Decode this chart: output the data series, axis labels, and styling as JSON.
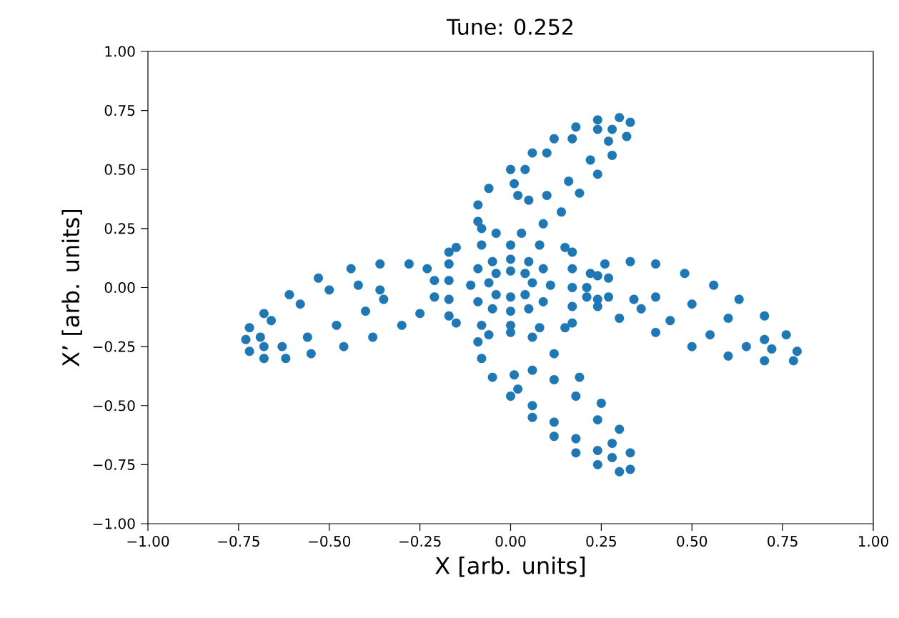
{
  "chart_data": {
    "type": "scatter",
    "title": "Tune: 0.252",
    "xlabel": "X [arb. units]",
    "ylabel": "X’ [arb. units]",
    "xlim": [
      -1,
      1
    ],
    "ylim": [
      -1,
      1
    ],
    "xticks": [
      {
        "value": -1,
        "label": "−1.00"
      },
      {
        "value": -0.75,
        "label": "−0.75"
      },
      {
        "value": -0.5,
        "label": "−0.50"
      },
      {
        "value": -0.25,
        "label": "−0.25"
      },
      {
        "value": 0,
        "label": "0.00"
      },
      {
        "value": 0.25,
        "label": "0.25"
      },
      {
        "value": 0.5,
        "label": "0.50"
      },
      {
        "value": 0.75,
        "label": "0.75"
      },
      {
        "value": 1,
        "label": "1.00"
      }
    ],
    "yticks": [
      {
        "value": -1,
        "label": "−1.00"
      },
      {
        "value": -0.75,
        "label": "−0.75"
      },
      {
        "value": -0.5,
        "label": "−0.50"
      },
      {
        "value": -0.25,
        "label": "−0.25"
      },
      {
        "value": 0,
        "label": "0.00"
      },
      {
        "value": 0.25,
        "label": "0.25"
      },
      {
        "value": 0.5,
        "label": "0.50"
      },
      {
        "value": 0.75,
        "label": "0.75"
      },
      {
        "value": 1,
        "label": "1.00"
      }
    ],
    "grid": false,
    "series": [
      {
        "color": "#1f77b4",
        "x": [
          0.21,
          0.22,
          0.26,
          0.33,
          0.4,
          0.48,
          0.56,
          0.63,
          0.7,
          0.76,
          0.79,
          0.78,
          0.7,
          0.6,
          0.5,
          0.4,
          0.3,
          0.24,
          0.21,
          0.34,
          0.4,
          0.5,
          0.6,
          0.7,
          0.72,
          0.65,
          0.55,
          0.44,
          0.36,
          0.24,
          0.24,
          0.27,
          0.27
        ],
        "values": [
          0.0,
          0.06,
          0.1,
          0.11,
          0.1,
          0.06,
          0.01,
          -0.05,
          -0.12,
          -0.2,
          -0.27,
          -0.31,
          -0.31,
          -0.29,
          -0.25,
          -0.19,
          -0.13,
          -0.08,
          -0.04,
          -0.05,
          -0.04,
          -0.07,
          -0.13,
          -0.22,
          -0.26,
          -0.25,
          -0.2,
          -0.14,
          -0.09,
          0.05,
          -0.05,
          0.04,
          -0.04
        ]
      },
      {
        "color": "#1f77b4",
        "x": [
          -0.09,
          -0.09,
          -0.06,
          0.0,
          0.06,
          0.12,
          0.18,
          0.24,
          0.3,
          0.33,
          0.32,
          0.28,
          0.24,
          0.19,
          0.14,
          0.09,
          0.03,
          -0.04,
          -0.08,
          0.01,
          0.04,
          0.1,
          0.17,
          0.24,
          0.28,
          0.27,
          0.22,
          0.16,
          0.1,
          0.05,
          0.02
        ],
        "values": [
          0.28,
          0.35,
          0.42,
          0.5,
          0.57,
          0.63,
          0.68,
          0.71,
          0.72,
          0.7,
          0.64,
          0.56,
          0.48,
          0.4,
          0.32,
          0.27,
          0.23,
          0.23,
          0.25,
          0.44,
          0.5,
          0.57,
          0.63,
          0.67,
          0.67,
          0.62,
          0.54,
          0.45,
          0.39,
          0.37,
          0.39
        ]
      },
      {
        "color": "#1f77b4",
        "x": [
          -0.73,
          -0.72,
          -0.68,
          -0.62,
          -0.55,
          -0.46,
          -0.38,
          -0.3,
          -0.25,
          -0.21,
          -0.21,
          -0.23,
          -0.28,
          -0.36,
          -0.44,
          -0.53,
          -0.61,
          -0.68,
          -0.72,
          -0.69,
          -0.66,
          -0.58,
          -0.5,
          -0.42,
          -0.36,
          -0.35,
          -0.4,
          -0.48,
          -0.56,
          -0.63,
          -0.68
        ],
        "values": [
          -0.22,
          -0.27,
          -0.3,
          -0.3,
          -0.28,
          -0.25,
          -0.21,
          -0.16,
          -0.11,
          -0.04,
          0.03,
          0.08,
          0.1,
          0.1,
          0.08,
          0.04,
          -0.03,
          -0.11,
          -0.17,
          -0.21,
          -0.14,
          -0.07,
          -0.01,
          0.01,
          -0.01,
          -0.05,
          -0.1,
          -0.16,
          -0.21,
          -0.25,
          -0.25
        ]
      },
      {
        "color": "#1f77b4",
        "x": [
          -0.09,
          -0.08,
          -0.05,
          0.0,
          0.06,
          0.12,
          0.18,
          0.24,
          0.3,
          0.33,
          0.33,
          0.3,
          0.25,
          0.19,
          0.12,
          0.06,
          0.0,
          -0.06,
          0.01,
          0.02,
          0.06,
          0.12,
          0.18,
          0.24,
          0.28,
          0.28,
          0.24,
          0.18,
          0.12,
          0.06
        ],
        "values": [
          -0.23,
          -0.3,
          -0.38,
          -0.46,
          -0.55,
          -0.63,
          -0.7,
          -0.75,
          -0.78,
          -0.77,
          -0.7,
          -0.6,
          -0.49,
          -0.38,
          -0.28,
          -0.21,
          -0.19,
          -0.2,
          -0.37,
          -0.43,
          -0.5,
          -0.57,
          -0.64,
          -0.69,
          -0.72,
          -0.66,
          -0.56,
          -0.46,
          -0.39,
          -0.35
        ]
      },
      {
        "color": "#1f77b4",
        "x": [
          -0.17,
          -0.15,
          -0.08,
          0.0,
          0.08,
          0.15,
          0.17,
          0.17,
          0.17,
          0.17,
          0.17,
          0.15,
          0.08,
          0.0,
          -0.08,
          -0.15,
          -0.17,
          -0.17,
          -0.17,
          -0.17,
          -0.11,
          -0.09,
          -0.05,
          0.0,
          0.05,
          0.09,
          0.11,
          0.09,
          0.05,
          0.0,
          -0.05,
          -0.09,
          -0.06,
          -0.04,
          0.0,
          0.04,
          0.06,
          0.04,
          0.0,
          -0.04
        ],
        "values": [
          0.15,
          0.17,
          0.18,
          0.18,
          0.18,
          0.17,
          0.15,
          0.08,
          0.0,
          -0.08,
          -0.15,
          -0.17,
          -0.17,
          -0.16,
          -0.16,
          -0.15,
          -0.12,
          -0.05,
          0.03,
          0.1,
          0.01,
          0.08,
          0.11,
          0.12,
          0.11,
          0.08,
          0.01,
          -0.06,
          -0.09,
          -0.1,
          -0.09,
          -0.06,
          0.02,
          0.06,
          0.07,
          0.06,
          0.02,
          -0.03,
          -0.04,
          -0.03
        ]
      }
    ]
  }
}
